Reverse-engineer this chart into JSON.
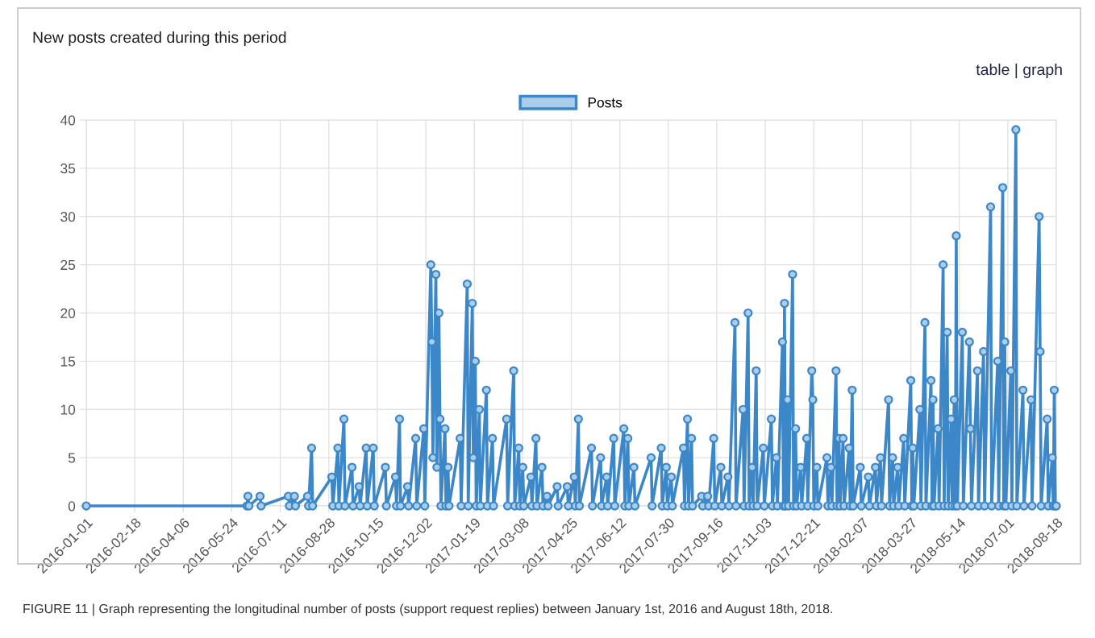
{
  "chart_data": {
    "type": "line",
    "title": "New posts created during this period",
    "annotations": [
      "table | graph",
      "FIGURE 11 | Graph representing the longitudinal number of posts (support request replies) between January 1st, 2016 and August 18th, 2018."
    ],
    "x": [
      "2016-01-01",
      "2016-06-08",
      "2016-06-09",
      "2016-06-10",
      "2016-06-21",
      "2016-06-22",
      "2016-07-19",
      "2016-07-20",
      "2016-07-25",
      "2016-07-26",
      "2016-08-07",
      "2016-08-08",
      "2016-08-11",
      "2016-08-12",
      "2016-08-31",
      "2016-09-01",
      "2016-09-06",
      "2016-09-07",
      "2016-09-12",
      "2016-09-13",
      "2016-09-20",
      "2016-09-21",
      "2016-09-27",
      "2016-09-28",
      "2016-10-04",
      "2016-10-05",
      "2016-10-11",
      "2016-10-12",
      "2016-10-23",
      "2016-10-24",
      "2016-11-02",
      "2016-11-03",
      "2016-11-06",
      "2016-11-07",
      "2016-11-14",
      "2016-11-15",
      "2016-11-22",
      "2016-11-23",
      "2016-11-30",
      "2016-12-01",
      "2016-12-07",
      "2016-12-08",
      "2016-12-09",
      "2016-12-12",
      "2016-12-13",
      "2016-12-15",
      "2016-12-16",
      "2016-12-17",
      "2016-12-21",
      "2016-12-22",
      "2016-12-24",
      "2016-12-25",
      "2017-01-05",
      "2017-01-06",
      "2017-01-12",
      "2017-01-13",
      "2017-01-17",
      "2017-01-18",
      "2017-01-20",
      "2017-01-21",
      "2017-01-24",
      "2017-01-25",
      "2017-01-31",
      "2017-02-01",
      "2017-02-06",
      "2017-02-07",
      "2017-02-20",
      "2017-02-21",
      "2017-02-27",
      "2017-02-28",
      "2017-03-04",
      "2017-03-05",
      "2017-03-08",
      "2017-03-09",
      "2017-03-16",
      "2017-03-17",
      "2017-03-21",
      "2017-03-22",
      "2017-03-27",
      "2017-03-28",
      "2017-04-01",
      "2017-04-02",
      "2017-04-11",
      "2017-04-12",
      "2017-04-21",
      "2017-04-22",
      "2017-04-28",
      "2017-04-29",
      "2017-05-02",
      "2017-05-03",
      "2017-05-15",
      "2017-05-16",
      "2017-05-24",
      "2017-05-25",
      "2017-05-30",
      "2017-05-31",
      "2017-06-06",
      "2017-06-07",
      "2017-06-16",
      "2017-06-17",
      "2017-06-20",
      "2017-06-21",
      "2017-06-26",
      "2017-06-27",
      "2017-07-13",
      "2017-07-14",
      "2017-07-23",
      "2017-07-24",
      "2017-07-28",
      "2017-07-29",
      "2017-08-02",
      "2017-08-03",
      "2017-08-14",
      "2017-08-15",
      "2017-08-18",
      "2017-08-19",
      "2017-08-22",
      "2017-08-23",
      "2017-09-01",
      "2017-09-02",
      "2017-09-07",
      "2017-09-08",
      "2017-09-13",
      "2017-09-14",
      "2017-09-20",
      "2017-09-21",
      "2017-09-27",
      "2017-09-28",
      "2017-10-04",
      "2017-10-05",
      "2017-10-12",
      "2017-10-13",
      "2017-10-17",
      "2017-10-18",
      "2017-10-21",
      "2017-10-22",
      "2017-10-25",
      "2017-10-26",
      "2017-11-01",
      "2017-11-02",
      "2017-11-09",
      "2017-11-10",
      "2017-11-14",
      "2017-11-15",
      "2017-11-20",
      "2017-11-21",
      "2017-11-22",
      "2017-11-23",
      "2017-11-25",
      "2017-11-26",
      "2017-11-30",
      "2017-12-01",
      "2017-12-03",
      "2017-12-04",
      "2017-12-08",
      "2017-12-09",
      "2017-12-14",
      "2017-12-15",
      "2017-12-19",
      "2017-12-20",
      "2017-12-21",
      "2017-12-24",
      "2017-12-25",
      "2018-01-03",
      "2018-01-04",
      "2018-01-07",
      "2018-01-08",
      "2018-01-12",
      "2018-01-13",
      "2018-01-15",
      "2018-01-16",
      "2018-01-19",
      "2018-01-20",
      "2018-01-25",
      "2018-01-26",
      "2018-01-28",
      "2018-01-29",
      "2018-02-05",
      "2018-02-06",
      "2018-02-13",
      "2018-02-14",
      "2018-02-20",
      "2018-02-21",
      "2018-02-25",
      "2018-02-26",
      "2018-03-05",
      "2018-03-06",
      "2018-03-09",
      "2018-03-10",
      "2018-03-14",
      "2018-03-15",
      "2018-03-20",
      "2018-03-21",
      "2018-03-27",
      "2018-03-28",
      "2018-03-29",
      "2018-03-30",
      "2018-04-05",
      "2018-04-06",
      "2018-04-10",
      "2018-04-11",
      "2018-04-16",
      "2018-04-17",
      "2018-04-18",
      "2018-04-19",
      "2018-04-23",
      "2018-04-24",
      "2018-04-28",
      "2018-04-29",
      "2018-05-02",
      "2018-05-03",
      "2018-05-06",
      "2018-05-07",
      "2018-05-09",
      "2018-05-10",
      "2018-05-11",
      "2018-05-12",
      "2018-05-17",
      "2018-05-18",
      "2018-05-24",
      "2018-05-25",
      "2018-05-26",
      "2018-06-01",
      "2018-06-02",
      "2018-06-07",
      "2018-06-08",
      "2018-06-14",
      "2018-06-15",
      "2018-06-21",
      "2018-06-22",
      "2018-06-26",
      "2018-06-27",
      "2018-06-28",
      "2018-06-29",
      "2018-07-04",
      "2018-07-05",
      "2018-07-09",
      "2018-07-10",
      "2018-07-16",
      "2018-07-17",
      "2018-07-24",
      "2018-07-25",
      "2018-08-01",
      "2018-08-02",
      "2018-08-03",
      "2018-08-09",
      "2018-08-10",
      "2018-08-14",
      "2018-08-15",
      "2018-08-16",
      "2018-08-17",
      "2018-08-18"
    ],
    "series": [
      {
        "name": "Posts",
        "color": "#3c87c8",
        "values": [
          0,
          0,
          1,
          0,
          1,
          0,
          1,
          0,
          1,
          0,
          1,
          0,
          6,
          0,
          3,
          0,
          6,
          0,
          9,
          0,
          4,
          0,
          2,
          0,
          6,
          0,
          6,
          0,
          4,
          0,
          3,
          0,
          9,
          0,
          2,
          0,
          7,
          0,
          8,
          0,
          25,
          17,
          5,
          24,
          4,
          20,
          9,
          0,
          8,
          0,
          4,
          0,
          7,
          0,
          23,
          0,
          21,
          5,
          15,
          0,
          10,
          0,
          12,
          0,
          7,
          0,
          9,
          0,
          14,
          0,
          6,
          0,
          4,
          0,
          3,
          0,
          7,
          0,
          4,
          0,
          1,
          0,
          2,
          0,
          2,
          0,
          3,
          0,
          9,
          0,
          6,
          0,
          5,
          0,
          3,
          0,
          7,
          0,
          8,
          0,
          7,
          0,
          4,
          0,
          5,
          0,
          6,
          0,
          4,
          0,
          3,
          0,
          6,
          0,
          9,
          0,
          7,
          0,
          1,
          0,
          1,
          0,
          7,
          0,
          4,
          0,
          3,
          0,
          19,
          0,
          10,
          0,
          20,
          0,
          4,
          0,
          14,
          0,
          6,
          0,
          9,
          0,
          5,
          0,
          17,
          0,
          21,
          0,
          11,
          0,
          24,
          0,
          8,
          0,
          4,
          0,
          7,
          0,
          14,
          11,
          0,
          4,
          0,
          5,
          0,
          4,
          0,
          14,
          0,
          7,
          0,
          7,
          0,
          6,
          0,
          12,
          0,
          4,
          0,
          3,
          0,
          4,
          0,
          5,
          0,
          11,
          0,
          5,
          0,
          4,
          0,
          7,
          0,
          13,
          0,
          6,
          0,
          10,
          0,
          19,
          0,
          13,
          0,
          11,
          0,
          8,
          0,
          25,
          0,
          18,
          0,
          9,
          0,
          11,
          0,
          28,
          0,
          18,
          0,
          17,
          8,
          0,
          14,
          0,
          16,
          0,
          31,
          0,
          15,
          0,
          33,
          0,
          17,
          0,
          14,
          0,
          39,
          0,
          12,
          0,
          11,
          0,
          30,
          16,
          0,
          9,
          0,
          5,
          0,
          12,
          0,
          0
        ]
      }
    ],
    "xlim": [
      "2016-01-01",
      "2018-08-18"
    ],
    "xticks": [
      "2016-01-01",
      "2016-02-18",
      "2016-04-06",
      "2016-05-24",
      "2016-07-11",
      "2016-08-28",
      "2016-10-15",
      "2016-12-02",
      "2017-01-19",
      "2017-03-08",
      "2017-04-25",
      "2017-06-12",
      "2017-07-30",
      "2017-09-16",
      "2017-11-03",
      "2017-12-21",
      "2018-02-07",
      "2018-03-27",
      "2018-05-14",
      "2018-07-01",
      "2018-08-18"
    ],
    "ylim": [
      0,
      40
    ],
    "yticks": [
      0,
      5,
      10,
      15,
      20,
      25,
      30,
      35,
      40
    ],
    "grid": true,
    "legend": "top",
    "marker": "circle",
    "line_style": "solid"
  }
}
